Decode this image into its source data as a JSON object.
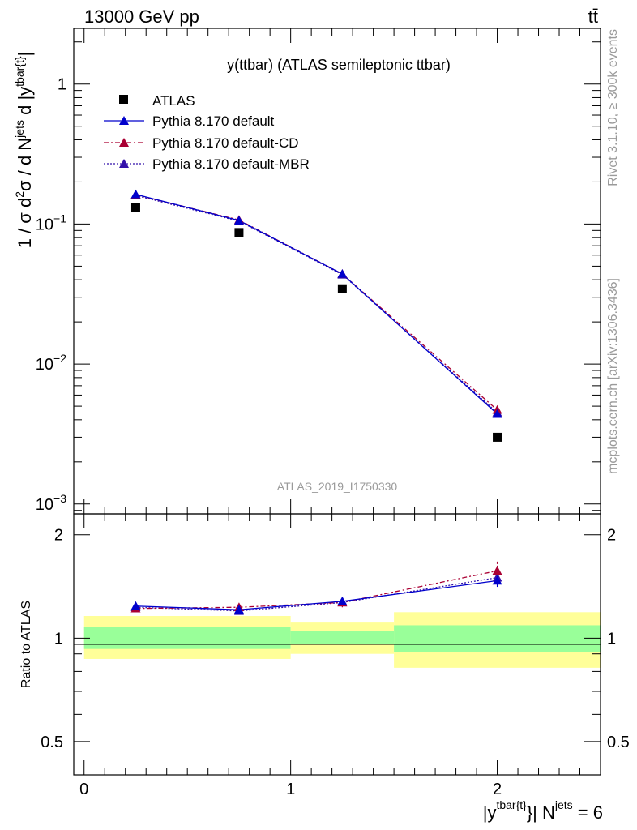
{
  "header": {
    "energy_label": "13000 GeV pp",
    "process_label": "tt̄"
  },
  "side_text": {
    "rivet": "Rivet 3.1.10, ≥ 300k events",
    "source": "mcplots.cern.ch [arXiv:1306.3436]"
  },
  "colors": {
    "data": "#000000",
    "default": "#0000cc",
    "cd": "#aa0033",
    "mbr": "#3311aa",
    "band_inner": "#99ff99",
    "band_outer": "#ffff99"
  },
  "chart_data": [
    {
      "type": "line",
      "panel": "main",
      "title": "y(ttbar) (ATLAS semileptonic ttbar)",
      "watermark": "ATLAS_2019_I1750330",
      "ylabel": "1 / σ d²σ / d N^jets d |y^tbar{t}|",
      "yscale": "log",
      "ylim": [
        0.00085,
        2.5
      ],
      "xlim": [
        -0.05,
        2.5
      ],
      "ytick_labels": [
        {
          "base": "10",
          "exp": "−3"
        },
        {
          "base": "10",
          "exp": "−2"
        },
        {
          "base": "10",
          "exp": "−1"
        },
        {
          "base": "1",
          "exp": ""
        }
      ],
      "legend": [
        {
          "label": "ATLAS"
        },
        {
          "label": "Pythia 8.170 default"
        },
        {
          "label": "Pythia 8.170 default-CD"
        },
        {
          "label": "Pythia 8.170 default-MBR"
        }
      ],
      "x": [
        0.25,
        0.75,
        1.25,
        2.0
      ],
      "series": [
        {
          "name": "ATLAS",
          "values": [
            0.131,
            0.087,
            0.0345,
            0.003
          ]
        },
        {
          "name": "Pythia 8.170 default",
          "values": [
            0.163,
            0.106,
            0.044,
            0.0044
          ]
        },
        {
          "name": "Pythia 8.170 default-CD",
          "values": [
            0.162,
            0.107,
            0.044,
            0.0047
          ]
        },
        {
          "name": "Pythia 8.170 default-MBR",
          "values": [
            0.16,
            0.105,
            0.0435,
            0.0045
          ]
        }
      ]
    },
    {
      "type": "line",
      "panel": "ratio",
      "ylabel": "Ratio to ATLAS",
      "xlabel": "|y^tbar{t}| N^jets = 6",
      "xlim": [
        -0.05,
        2.5
      ],
      "ylim": [
        0.4,
        2.3
      ],
      "ytick_labels": [
        "0.5",
        "1",
        "2"
      ],
      "xtick_labels": [
        "0",
        "1",
        "2"
      ],
      "x": [
        0.25,
        0.75,
        1.25,
        2.0
      ],
      "series": [
        {
          "name": "Pythia 8.170 default",
          "values": [
            1.24,
            1.21,
            1.28,
            1.47
          ]
        },
        {
          "name": "Pythia 8.170 default-CD",
          "values": [
            1.22,
            1.23,
            1.27,
            1.57
          ]
        },
        {
          "name": "Pythia 8.170 default-MBR",
          "values": [
            1.23,
            1.2,
            1.27,
            1.5
          ]
        }
      ],
      "ratio_errors": [
        {
          "name": "Pythia 8.170 default-CD",
          "values": [
            0.02,
            0.02,
            0.04,
            0.1
          ]
        },
        {
          "name": "Pythia 8.170 default",
          "values": [
            0.02,
            0.02,
            0.03,
            0.06
          ]
        }
      ],
      "bands": [
        {
          "x0": 0.0,
          "x1": 1.0,
          "inner": [
            0.93,
            1.08
          ],
          "outer": [
            0.87,
            1.16
          ]
        },
        {
          "x0": 1.0,
          "x1": 1.5,
          "inner": [
            0.96,
            1.05
          ],
          "outer": [
            0.9,
            1.11
          ]
        },
        {
          "x0": 1.5,
          "x1": 2.5,
          "inner": [
            0.91,
            1.09
          ],
          "outer": [
            0.82,
            1.19
          ]
        }
      ]
    }
  ]
}
